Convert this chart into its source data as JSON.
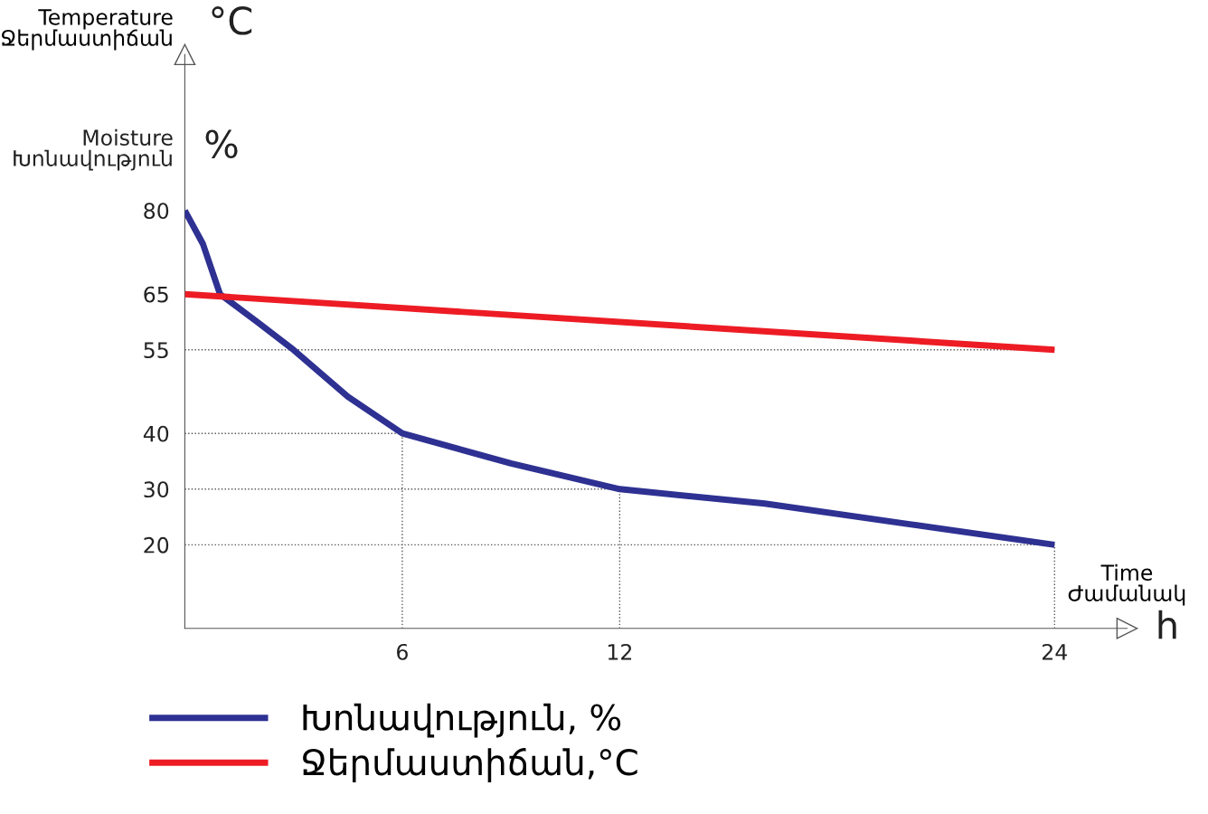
{
  "chart_data": {
    "type": "line",
    "ylabel": "Temperature\nՋերմաստիճան",
    "xlabel": "Time\nԺամանակ",
    "annotations": [
      "°C",
      "Moisture\nԽոնավություն",
      "%",
      "h"
    ],
    "series": [
      {
        "name": "Խոնավություն, %",
        "color": "#2e3192",
        "x": [
          0,
          0.5,
          0.97,
          2,
          3,
          4.5,
          6,
          9,
          12,
          16,
          20,
          24
        ],
        "values": [
          80,
          74,
          65,
          60,
          55,
          46.6,
          40,
          34.6,
          30,
          27.4,
          23.7,
          20
        ]
      },
      {
        "name": "Ջերմաստիճան,°C",
        "color": "#ed1c24",
        "x": [
          0,
          24
        ],
        "values": [
          65,
          55
        ]
      }
    ],
    "xlim": [
      0,
      26
    ],
    "xticks": [
      6,
      12,
      24
    ],
    "ylim": [
      5,
      108
    ],
    "yticks": [
      20,
      30,
      40,
      55,
      65,
      80
    ],
    "ref_lines": [
      {
        "axis": "y",
        "value": 55,
        "line_style": "dotted",
        "color": "#555555"
      },
      {
        "axis": "y",
        "value": 40,
        "line_style": "dotted",
        "color": "#555555"
      },
      {
        "axis": "y",
        "value": 30,
        "line_style": "dotted",
        "color": "#555555"
      },
      {
        "axis": "y",
        "value": 20,
        "line_style": "dotted",
        "color": "#555555"
      },
      {
        "axis": "x",
        "value": 6,
        "line_style": "dotted",
        "color": "#555555"
      },
      {
        "axis": "x",
        "value": 12,
        "line_style": "dotted",
        "color": "#555555"
      },
      {
        "axis": "x",
        "value": 24,
        "line_style": "dotted",
        "color": "#555555"
      }
    ],
    "legend": "bottom",
    "grid": false,
    "marker": "none",
    "line_style": "solid"
  }
}
